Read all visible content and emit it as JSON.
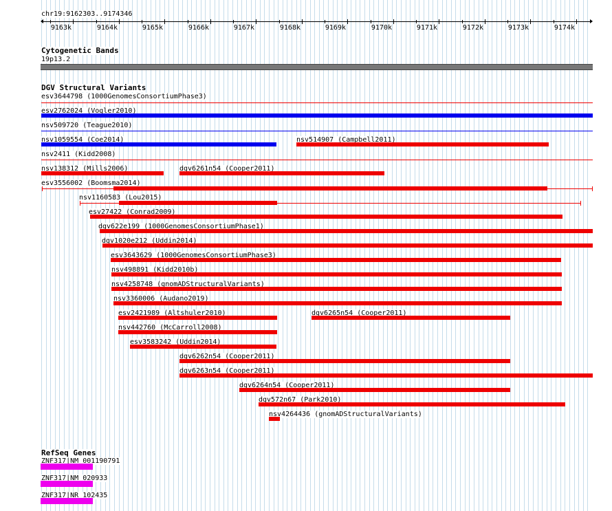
{
  "header": {
    "position": "chr19:9162303..9174346"
  },
  "ruler": {
    "ticks": [
      "9163k",
      "9164k",
      "9165k",
      "9166k",
      "9167k",
      "9168k",
      "9169k",
      "9170k",
      "9171k",
      "9172k",
      "9173k",
      "9174k"
    ]
  },
  "cytobands": {
    "title": "Cytogenetic Bands",
    "band": "19p13.2"
  },
  "dgv": {
    "title": "DGV Structural Variants",
    "features": [
      {
        "id": "esv3644798",
        "label": "esv3644798 (1000GenomesConsortiumPhase3)"
      },
      {
        "id": "esv2762024",
        "label": "esv2762024 (Vogler2010)"
      },
      {
        "id": "nsv509720",
        "label": "nsv509720 (Teague2010)"
      },
      {
        "id": "nsv1059554",
        "label": "nsv1059554 (Coe2014)"
      },
      {
        "id": "nsv514907",
        "label": "nsv514907 (Campbell2011)"
      },
      {
        "id": "nsv2411",
        "label": "nsv2411 (Kidd2008)"
      },
      {
        "id": "nsv138312",
        "label": "nsv138312 (Mills2006)"
      },
      {
        "id": "dgv6261n54",
        "label": "dgv6261n54 (Cooper2011)"
      },
      {
        "id": "esv3556002",
        "label": "esv3556002 (Boomsma2014)"
      },
      {
        "id": "nsv1160583",
        "label": "nsv1160583 (Lou2015)"
      },
      {
        "id": "esv27422",
        "label": "esv27422 (Conrad2009)"
      },
      {
        "id": "dgv622e199",
        "label": "dgv622e199 (1000GenomesConsortiumPhase1)"
      },
      {
        "id": "dgv1020e212",
        "label": "dgv1020e212 (Uddin2014)"
      },
      {
        "id": "esv3643629",
        "label": "esv3643629 (1000GenomesConsortiumPhase3)"
      },
      {
        "id": "nsv498891",
        "label": "nsv498891 (Kidd2010b)"
      },
      {
        "id": "nsv4258748",
        "label": "nsv4258748 (gnomADStructuralVariants)"
      },
      {
        "id": "nsv3360006",
        "label": "nsv3360006 (Audano2019)"
      },
      {
        "id": "esv2421989",
        "label": "esv2421989 (Altshuler2010)"
      },
      {
        "id": "dgv6265n54",
        "label": "dgv6265n54 (Cooper2011)"
      },
      {
        "id": "nsv442760",
        "label": "nsv442760 (McCarroll2008)"
      },
      {
        "id": "esv3583242",
        "label": "esv3583242 (Uddin2014)"
      },
      {
        "id": "dgv6262n54",
        "label": "dgv6262n54 (Cooper2011)"
      },
      {
        "id": "dgv6263n54",
        "label": "dgv6263n54 (Cooper2011)"
      },
      {
        "id": "dgv6264n54",
        "label": "dgv6264n54 (Cooper2011)"
      },
      {
        "id": "dgv572n67",
        "label": "dgv572n67 (Park2010)"
      },
      {
        "id": "nsv4264436",
        "label": "nsv4264436 (gnomADStructuralVariants)"
      }
    ]
  },
  "refseq": {
    "title": "RefSeq Genes",
    "genes": [
      {
        "label": "ZNF317|NM_001190791"
      },
      {
        "label": "ZNF317|NM_020933"
      },
      {
        "label": "ZNF317|NR_102435"
      }
    ]
  },
  "colors": {
    "gain": "#0000ee",
    "loss": "#ee0000",
    "gene": "#ee00ee",
    "grid": "#c5dcea",
    "cytoband": "#777777"
  }
}
